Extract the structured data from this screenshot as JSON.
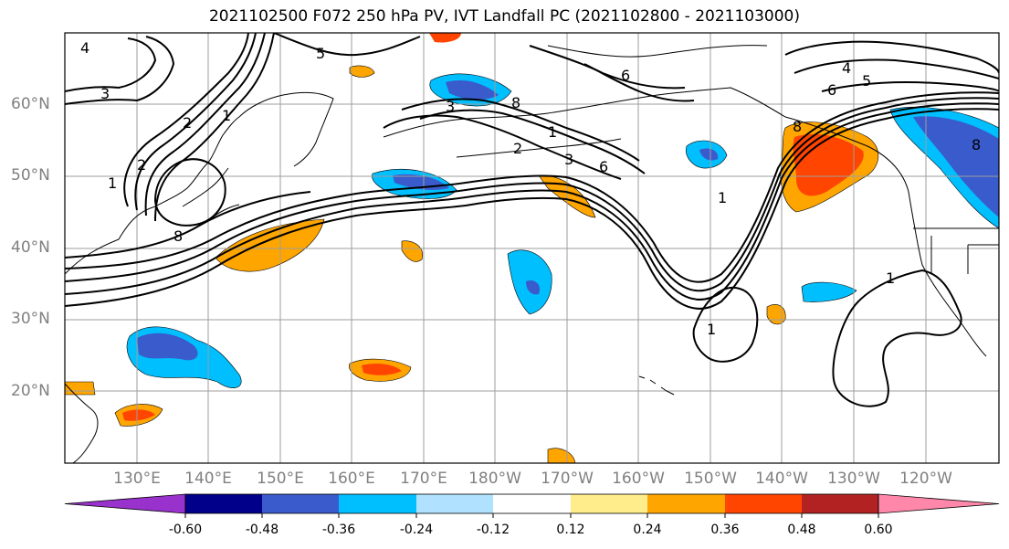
{
  "title": "2021102500 F072 250 hPa PV, IVT Landfall PC (2021102800 - 2021103000)",
  "lat_labels": [
    "60°N",
    "50°N",
    "40°N",
    "30°N",
    "20°N"
  ],
  "lon_labels": [
    "130°E",
    "140°E",
    "150°E",
    "160°E",
    "170°E",
    "180°W",
    "170°W",
    "160°W",
    "150°W",
    "140°W",
    "130°W",
    "120°W"
  ],
  "colorbar": {
    "colors": [
      "#9932cc",
      "#00008b",
      "#3a5bcc",
      "#00bfff",
      "#b0e2ff",
      "#ffffff",
      "#ffec8b",
      "#ffa500",
      "#ff4500",
      "#b22222",
      "#ff88aa"
    ],
    "tick_labels": [
      "-0.60",
      "-0.48",
      "-0.36",
      "-0.24",
      "-0.12",
      "0.12",
      "0.24",
      "0.36",
      "0.48",
      "0.60"
    ]
  },
  "contour_labels": [
    "4",
    "3",
    "5",
    "3",
    "8",
    "2",
    "1",
    "2",
    "1",
    "8",
    "6",
    "2",
    "3",
    "6",
    "1",
    "6",
    "4",
    "5",
    "8",
    "8",
    "1",
    "1",
    "1"
  ]
}
